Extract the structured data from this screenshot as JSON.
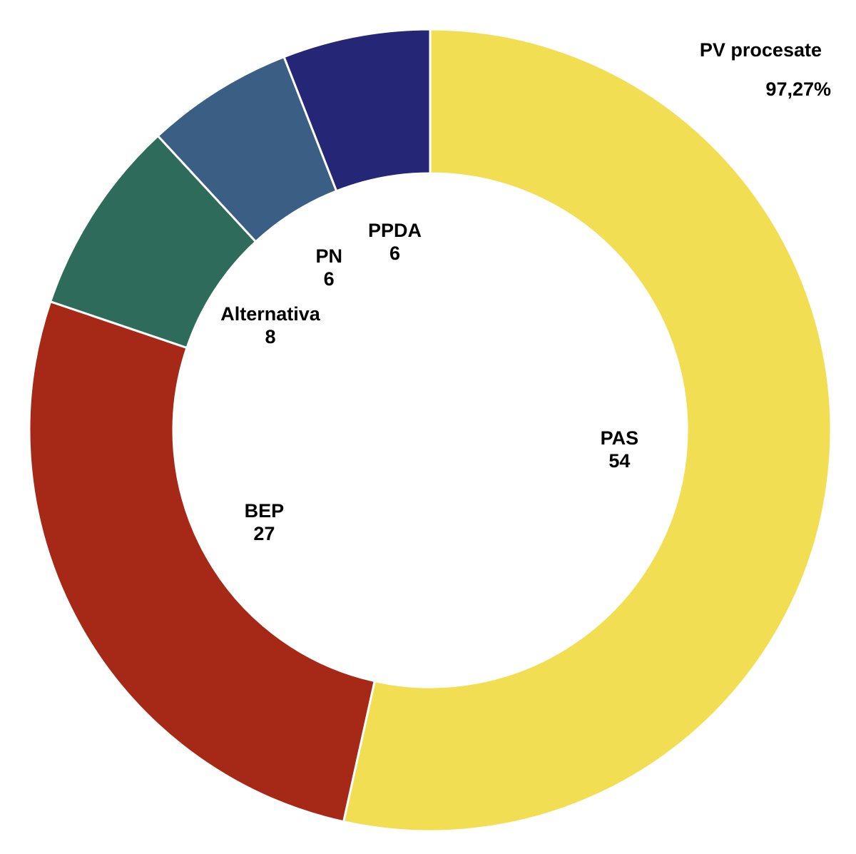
{
  "chart_data": {
    "type": "donut",
    "categories": [
      "PAS",
      "BEP",
      "Alternativa",
      "PN",
      "PPDA"
    ],
    "values": [
      54,
      27,
      8,
      6,
      6
    ],
    "colors": [
      "#F2DE52",
      "#A62918",
      "#2E6B5A",
      "#3B5F84",
      "#252675"
    ],
    "subtitle": "PV procesate",
    "annotation": {
      "value": 97.27,
      "label": "97,27%"
    }
  }
}
